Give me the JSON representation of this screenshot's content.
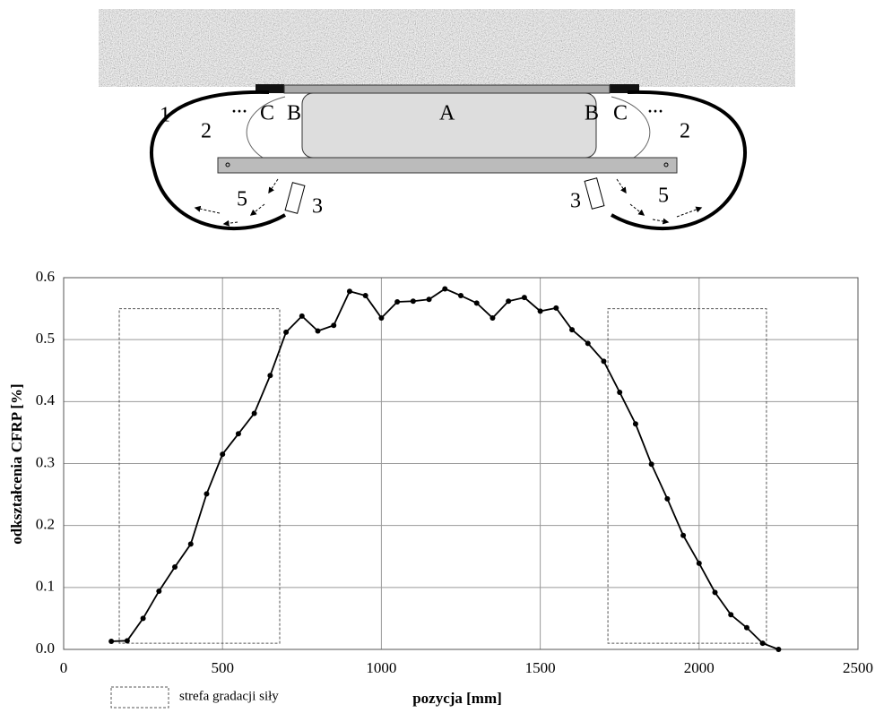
{
  "diagram": {
    "labels": [
      "1",
      "2",
      "...",
      "C",
      "B",
      "A",
      "B",
      "C",
      "...",
      "2",
      "3",
      "3",
      "5",
      "5"
    ]
  },
  "chart_data": {
    "type": "line",
    "x_label": "pozycja [mm]",
    "y_label": "odkształcenia CFRP [%]",
    "x": [
      150,
      200,
      250,
      300,
      350,
      400,
      450,
      500,
      550,
      600,
      650,
      700,
      750,
      800,
      850,
      900,
      950,
      1000,
      1050,
      1100,
      1150,
      1200,
      1250,
      1300,
      1350,
      1400,
      1450,
      1500,
      1550,
      1600,
      1650,
      1700,
      1750,
      1800,
      1850,
      1900,
      1950,
      2000,
      2050,
      2100,
      2150,
      2200,
      2250
    ],
    "series": [
      {
        "color": "#000000",
        "values": [
          0.013,
          0.014,
          0.05,
          0.094,
          0.133,
          0.17,
          0.251,
          0.315,
          0.348,
          0.381,
          0.442,
          0.512,
          0.538,
          0.514,
          0.523,
          0.578,
          0.571,
          0.535,
          0.561,
          0.562,
          0.565,
          0.582,
          0.571,
          0.559,
          0.535,
          0.562,
          0.568,
          0.546,
          0.551,
          0.516,
          0.494,
          0.465,
          0.415,
          0.364,
          0.299,
          0.243,
          0.184,
          0.139,
          0.092,
          0.056,
          0.035,
          0.01,
          0.0
        ]
      }
    ],
    "zone_label": "strefa gradacji siły",
    "zones": [
      {
        "x": [
          175,
          680
        ],
        "y": [
          0.01,
          0.55
        ]
      },
      {
        "x": [
          1713,
          2212
        ],
        "y": [
          0.01,
          0.55
        ]
      }
    ],
    "xlim": [
      0,
      2500
    ],
    "xticks": [
      0,
      500,
      1000,
      1500,
      2000,
      2500
    ],
    "ylim": [
      0,
      0.6
    ],
    "yticks": [
      {
        "value": 0,
        "label": "0.0"
      },
      0.1,
      0.2,
      0.3,
      0.4,
      0.5,
      0.6
    ],
    "grid": true
  }
}
